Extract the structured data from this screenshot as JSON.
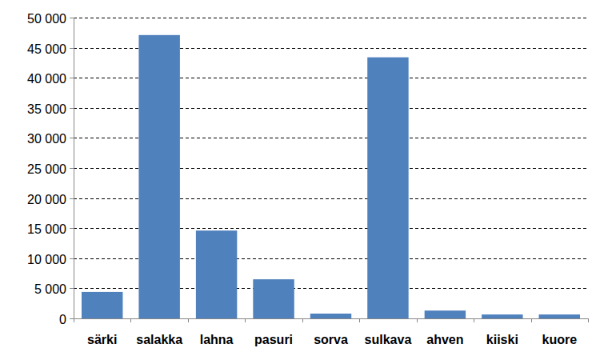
{
  "chart_data": {
    "type": "bar",
    "categories": [
      "särki",
      "salakka",
      "lahna",
      "pasuri",
      "sorva",
      "sulkava",
      "ahven",
      "kiiski",
      "kuore"
    ],
    "values": [
      4400,
      47100,
      14600,
      6500,
      800,
      43400,
      1300,
      650,
      650
    ],
    "color": "#4f81bd",
    "ylim": [
      0,
      50000
    ],
    "yticks": [
      0,
      {
        "value": 5000,
        "label": "5 000"
      },
      {
        "value": 10000,
        "label": "10 000"
      },
      {
        "value": 15000,
        "label": "15 000"
      },
      {
        "value": 20000,
        "label": "20 000"
      },
      {
        "value": 25000,
        "label": "25 000"
      },
      {
        "value": 30000,
        "label": "30 000"
      },
      {
        "value": 35000,
        "label": "35 000"
      },
      {
        "value": 40000,
        "label": "40 000"
      },
      {
        "value": 45000,
        "label": "45 000"
      },
      {
        "value": 50000,
        "label": "50 000"
      }
    ],
    "grid": true
  }
}
